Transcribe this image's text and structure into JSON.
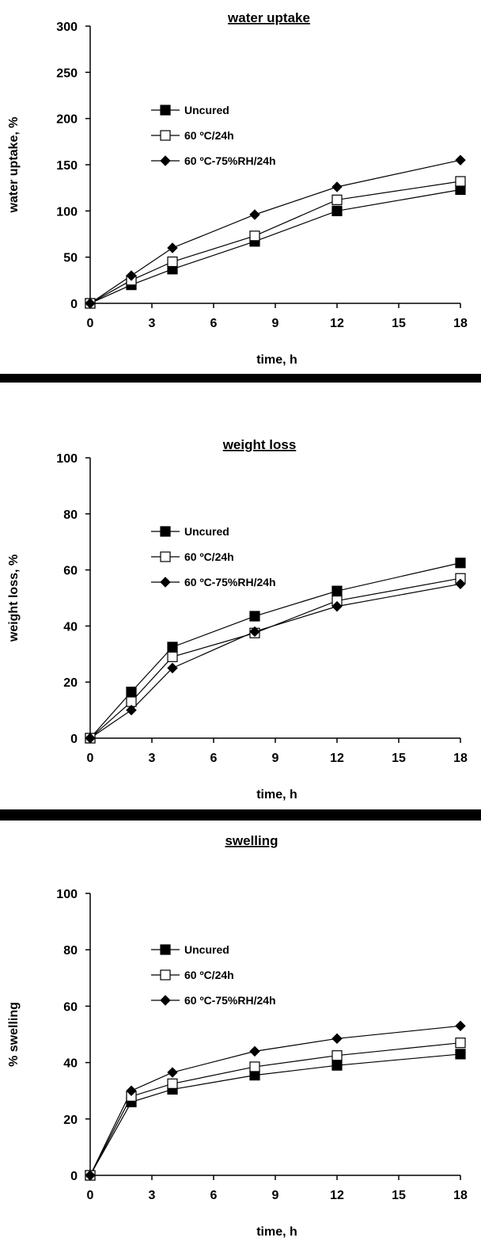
{
  "chart_data": [
    {
      "type": "line",
      "title": "water uptake",
      "xlabel": "time, h",
      "ylabel": "water uptake, %",
      "x": [
        0,
        2,
        4,
        8,
        12,
        18
      ],
      "xticks": [
        0,
        3,
        6,
        9,
        12,
        15,
        18
      ],
      "xlim": [
        0,
        18
      ],
      "yticks": [
        0,
        50,
        100,
        150,
        200,
        250,
        300
      ],
      "ylim": [
        0,
        300
      ],
      "legend_position": "upper-left",
      "grid": false,
      "series": [
        {
          "name": "Uncured",
          "marker": "filled-square",
          "values": [
            0,
            20,
            37,
            67,
            100,
            123
          ]
        },
        {
          "name": "60 ºC/24h",
          "marker": "open-square",
          "values": [
            0,
            25,
            45,
            73,
            112,
            132
          ]
        },
        {
          "name": "60 ºC-75%RH/24h",
          "marker": "filled-diamond",
          "values": [
            0,
            30,
            60,
            96,
            126,
            155
          ]
        }
      ]
    },
    {
      "type": "line",
      "title": "weight loss",
      "xlabel": "time, h",
      "ylabel": "weight loss, %",
      "x": [
        0,
        2,
        4,
        8,
        12,
        18
      ],
      "xticks": [
        0,
        3,
        6,
        9,
        12,
        15,
        18
      ],
      "xlim": [
        0,
        18
      ],
      "yticks": [
        0,
        20,
        40,
        60,
        80,
        100
      ],
      "ylim": [
        0,
        100
      ],
      "legend_position": "upper-left",
      "grid": false,
      "series": [
        {
          "name": "Uncured",
          "marker": "filled-square",
          "values": [
            0,
            16.5,
            32.5,
            43.5,
            52.5,
            62.5
          ]
        },
        {
          "name": "60 ºC/24h",
          "marker": "open-square",
          "values": [
            0,
            13,
            29,
            37.5,
            49,
            57
          ]
        },
        {
          "name": "60 ºC-75%RH/24h",
          "marker": "filled-diamond",
          "values": [
            0,
            10,
            25,
            38,
            47,
            55
          ]
        }
      ]
    },
    {
      "type": "line",
      "title": "swelling",
      "xlabel": "time, h",
      "ylabel": "% swelling",
      "x": [
        0,
        2,
        4,
        8,
        12,
        18
      ],
      "xticks": [
        0,
        3,
        6,
        9,
        12,
        15,
        18
      ],
      "xlim": [
        0,
        18
      ],
      "yticks": [
        0,
        20,
        40,
        60,
        80,
        100
      ],
      "ylim": [
        0,
        100
      ],
      "legend_position": "upper-left",
      "grid": false,
      "series": [
        {
          "name": "Uncured",
          "marker": "filled-square",
          "values": [
            0,
            26,
            30.5,
            35.5,
            39,
            43
          ]
        },
        {
          "name": "60 ºC/24h",
          "marker": "open-square",
          "values": [
            0,
            28,
            32.5,
            38.5,
            42.5,
            47
          ]
        },
        {
          "name": "60 ºC-75%RH/24h",
          "marker": "filled-diamond",
          "values": [
            0,
            30,
            36.5,
            44,
            48.5,
            53
          ]
        }
      ]
    }
  ]
}
